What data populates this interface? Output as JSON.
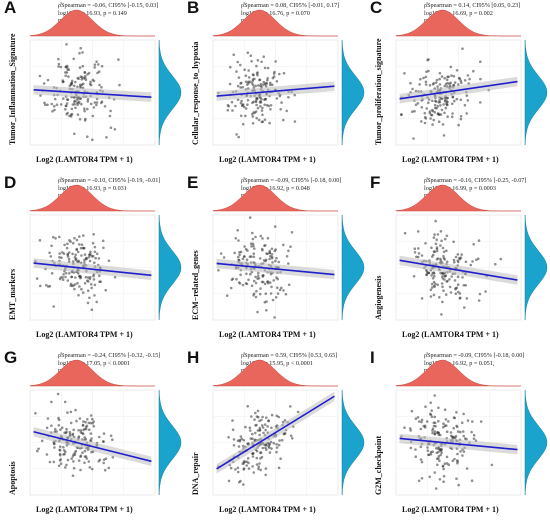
{
  "chart_data": [
    {
      "type": "scatter",
      "letter": "A",
      "ylabel": "Tumor_Inflammation_Signature",
      "xlabel": "Log2 (LAMTOR4 TPM + 1)",
      "stats": {
        "line1": "ρ̂Spearman = -0.06, CI95% [-0.15, 0.03]",
        "line2": "log10(S) = 16.93, p = 0.149",
        "line3": "npairs = 498"
      },
      "rho": -0.06,
      "n": 498,
      "xlim": [
        0,
        7
      ],
      "ylim": [
        -1,
        1
      ],
      "fit": {
        "slope": -0.06,
        "intercept": 0.0
      }
    },
    {
      "type": "scatter",
      "letter": "B",
      "ylabel": "Cellular_response_to_hypoxia",
      "xlabel": "Log2 (LAMTOR4 TPM + 1)",
      "stats": {
        "line1": "ρ̂Spearman = 0.08, CI95% [-0.01, 0.17]",
        "line2": "log10(S) = 16.76, p = 0.070",
        "line3": "npairs = 498"
      },
      "rho": 0.08,
      "n": 498,
      "xlim": [
        0,
        7
      ],
      "ylim": [
        -1,
        1
      ],
      "fit": {
        "slope": 0.08,
        "intercept": 0.0
      }
    },
    {
      "type": "scatter",
      "letter": "C",
      "ylabel": "Tumor_proliferation_signature",
      "xlabel": "Log2 (LAMTOR4 TPM + 1)",
      "stats": {
        "line1": "ρ̂Spearman = 0.14, CI95% [0.05, 0.23]",
        "line2": "log10(S) = 16.69, p = 0.002",
        "line3": "npairs = 498"
      },
      "rho": 0.14,
      "n": 498,
      "xlim": [
        0,
        7
      ],
      "ylim": [
        -1,
        1
      ],
      "fit": {
        "slope": 0.14,
        "intercept": 0.0
      }
    },
    {
      "type": "scatter",
      "letter": "D",
      "ylabel": "EMT_markers",
      "xlabel": "Log2 (LAMTOR4 TPM + 1)",
      "stats": {
        "line1": "ρ̂Spearman = -0.10, CI95% [-0.19, -0.01]",
        "line2": "log10(S) = 16.93, p = 0.031",
        "line3": "npairs = 498"
      },
      "rho": -0.1,
      "n": 498,
      "xlim": [
        0,
        7
      ],
      "ylim": [
        -1,
        1
      ],
      "fit": {
        "slope": -0.1,
        "intercept": 0.0
      }
    },
    {
      "type": "scatter",
      "letter": "E",
      "ylabel": "ECM−related_genes",
      "xlabel": "Log2 (LAMTOR4 TPM + 1)",
      "stats": {
        "line1": "ρ̂Spearman = -0.09, CI95% [-0.18, 0.00]",
        "line2": "log10(S) = 16.92, p = 0.048",
        "line3": "npairs = 498"
      },
      "rho": -0.09,
      "n": 498,
      "xlim": [
        0,
        7
      ],
      "ylim": [
        -1,
        1
      ],
      "fit": {
        "slope": -0.09,
        "intercept": 0.0
      }
    },
    {
      "type": "scatter",
      "letter": "F",
      "ylabel": "Angiogenesis",
      "xlabel": "Log2 (LAMTOR4 TPM + 1)",
      "stats": {
        "line1": "ρ̂Spearman = -0.16, CI95% [-0.25, -0.07]",
        "line2": "log10(S) = 16.99, p = 0.0003",
        "line3": "npairs = 498"
      },
      "rho": -0.16,
      "n": 498,
      "xlim": [
        0,
        7
      ],
      "ylim": [
        -1,
        1
      ],
      "fit": {
        "slope": -0.16,
        "intercept": 0.0
      }
    },
    {
      "type": "scatter",
      "letter": "G",
      "ylabel": "Apoptosis",
      "xlabel": "Log2 (LAMTOR4 TPM + 1)",
      "stats": {
        "line1": "ρ̂Spearman = -0.24, CI95% [-0.32, -0.15]",
        "line2": "log10(S) = 17.05, p < 0.0001",
        "line3": "npairs = 498"
      },
      "rho": -0.24,
      "n": 498,
      "xlim": [
        0,
        7
      ],
      "ylim": [
        -1,
        1
      ],
      "fit": {
        "slope": -0.24,
        "intercept": 0.0
      }
    },
    {
      "type": "scatter",
      "letter": "H",
      "ylabel": "DNA_repair",
      "xlabel": "Log2 (LAMTOR4 TPM + 1)",
      "stats": {
        "line1": "ρ̂Spearman = 0.59, CI95% [0.53, 0.65]",
        "line2": "log10(S) = 15.95, p < 0.0001",
        "line3": "npairs = 498"
      },
      "rho": 0.59,
      "n": 498,
      "xlim": [
        0,
        7
      ],
      "ylim": [
        -1,
        1
      ],
      "fit": {
        "slope": 0.59,
        "intercept": 0.0
      }
    },
    {
      "type": "scatter",
      "letter": "I",
      "ylabel": "G2M_checkpoint",
      "xlabel": "Log2 (LAMTOR4 TPM + 1)",
      "stats": {
        "line1": "ρ̂Spearman = -0.09, CI95% [-0.18, 0.00]",
        "line2": "log10(S) = 16.92, p = 0.051,",
        "line3": "npairs = 498"
      },
      "rho": -0.09,
      "n": 498,
      "xlim": [
        0,
        7
      ],
      "ylim": [
        -1,
        1
      ],
      "fit": {
        "slope": -0.09,
        "intercept": 0.0
      }
    }
  ],
  "colors": {
    "points": "#333333",
    "fit_line": "#1f1fcc",
    "ci_band": "#bdbdbd",
    "x_density": "#e8665c",
    "y_density": "#1aa3cc"
  }
}
